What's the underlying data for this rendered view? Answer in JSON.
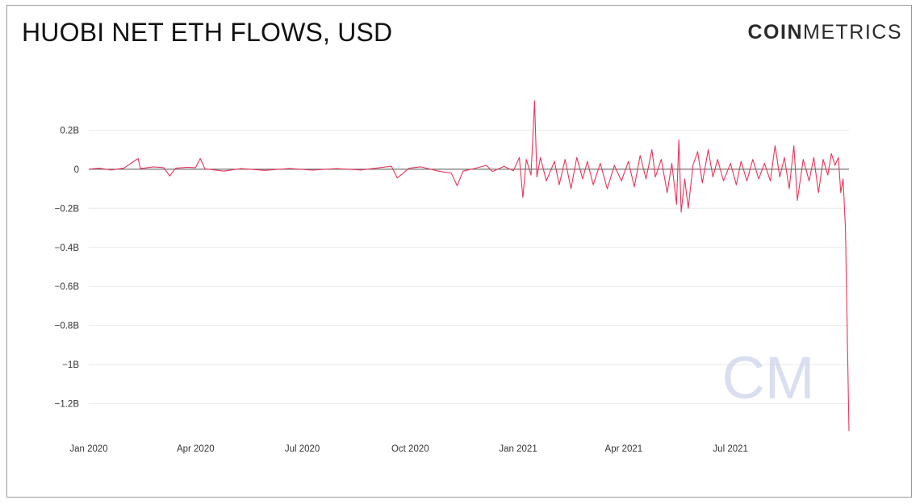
{
  "header": {
    "title": "HUOBI NET ETH FLOWS, USD",
    "logo_bold": "COIN",
    "logo_light": "METRICS",
    "watermark": "CM"
  },
  "colors": {
    "series": "#e8355a",
    "zero_line": "#555555",
    "grid": "#e9e9e9",
    "watermark": "#c9d2ea"
  },
  "chart_data": {
    "type": "line",
    "title": "HUOBI NET ETH FLOWS, USD",
    "xlabel": "",
    "ylabel": "",
    "grid": true,
    "legend": "none",
    "x_range": [
      "2020-01-01",
      "2021-10-10"
    ],
    "ylim": [
      -1.35,
      0.35
    ],
    "y_unit": "B USD",
    "y_ticks": [
      {
        "value": 0.2,
        "label": "0.2B"
      },
      {
        "value": 0,
        "label": "0"
      },
      {
        "value": -0.2,
        "label": "-0.2B"
      },
      {
        "value": -0.4,
        "label": "-0.4B"
      },
      {
        "value": -0.6,
        "label": "-0.6B"
      },
      {
        "value": -0.8,
        "label": "-0.8B"
      },
      {
        "value": -1.0,
        "label": "-1B"
      },
      {
        "value": -1.2,
        "label": "-1.2B"
      }
    ],
    "x_ticks": [
      {
        "date": "2020-01-01",
        "label": "Jan 2020"
      },
      {
        "date": "2020-04-01",
        "label": "Apr 2020"
      },
      {
        "date": "2020-07-01",
        "label": "Jul 2020"
      },
      {
        "date": "2020-10-01",
        "label": "Oct 2020"
      },
      {
        "date": "2021-01-01",
        "label": "Jan 2021"
      },
      {
        "date": "2021-04-01",
        "label": "Apr 2021"
      },
      {
        "date": "2021-07-01",
        "label": "Jul 2021"
      }
    ],
    "series": [
      {
        "points": [
          [
            "2020-01-01",
            0.0
          ],
          [
            "2020-01-10",
            0.005
          ],
          [
            "2020-01-20",
            -0.004
          ],
          [
            "2020-01-31",
            0.006
          ],
          [
            "2020-02-12",
            0.055
          ],
          [
            "2020-02-14",
            0.003
          ],
          [
            "2020-02-25",
            0.012
          ],
          [
            "2020-03-05",
            0.008
          ],
          [
            "2020-03-10",
            -0.035
          ],
          [
            "2020-03-15",
            0.005
          ],
          [
            "2020-03-25",
            0.01
          ],
          [
            "2020-04-01",
            0.008
          ],
          [
            "2020-04-05",
            0.055
          ],
          [
            "2020-04-09",
            0.002
          ],
          [
            "2020-04-25",
            -0.01
          ],
          [
            "2020-05-10",
            0.003
          ],
          [
            "2020-05-30",
            -0.006
          ],
          [
            "2020-06-20",
            0.004
          ],
          [
            "2020-07-10",
            -0.005
          ],
          [
            "2020-07-30",
            0.003
          ],
          [
            "2020-08-20",
            -0.004
          ],
          [
            "2020-09-05",
            0.008
          ],
          [
            "2020-09-15",
            0.015
          ],
          [
            "2020-09-20",
            -0.045
          ],
          [
            "2020-09-25",
            -0.02
          ],
          [
            "2020-09-30",
            0.005
          ],
          [
            "2020-10-10",
            0.012
          ],
          [
            "2020-10-25",
            -0.01
          ],
          [
            "2020-11-05",
            -0.02
          ],
          [
            "2020-11-10",
            -0.085
          ],
          [
            "2020-11-15",
            -0.01
          ],
          [
            "2020-11-25",
            0.004
          ],
          [
            "2020-12-05",
            0.02
          ],
          [
            "2020-12-10",
            -0.012
          ],
          [
            "2020-12-20",
            0.015
          ],
          [
            "2020-12-28",
            -0.008
          ],
          [
            "2021-01-02",
            0.06
          ],
          [
            "2021-01-05",
            -0.145
          ],
          [
            "2021-01-08",
            0.05
          ],
          [
            "2021-01-12",
            -0.03
          ],
          [
            "2021-01-15",
            0.35
          ],
          [
            "2021-01-17",
            -0.04
          ],
          [
            "2021-01-20",
            0.06
          ],
          [
            "2021-01-25",
            -0.06
          ],
          [
            "2021-02-01",
            0.04
          ],
          [
            "2021-02-05",
            -0.08
          ],
          [
            "2021-02-10",
            0.05
          ],
          [
            "2021-02-15",
            -0.1
          ],
          [
            "2021-02-20",
            0.06
          ],
          [
            "2021-02-25",
            -0.05
          ],
          [
            "2021-03-01",
            0.04
          ],
          [
            "2021-03-06",
            -0.08
          ],
          [
            "2021-03-12",
            0.03
          ],
          [
            "2021-03-18",
            -0.1
          ],
          [
            "2021-03-24",
            0.02
          ],
          [
            "2021-03-30",
            -0.06
          ],
          [
            "2021-04-05",
            0.04
          ],
          [
            "2021-04-10",
            -0.09
          ],
          [
            "2021-04-15",
            0.07
          ],
          [
            "2021-04-20",
            -0.05
          ],
          [
            "2021-04-25",
            0.1
          ],
          [
            "2021-04-28",
            -0.04
          ],
          [
            "2021-05-03",
            0.05
          ],
          [
            "2021-05-08",
            -0.12
          ],
          [
            "2021-05-12",
            0.03
          ],
          [
            "2021-05-16",
            -0.18
          ],
          [
            "2021-05-18",
            0.15
          ],
          [
            "2021-05-20",
            -0.22
          ],
          [
            "2021-05-23",
            -0.05
          ],
          [
            "2021-05-26",
            -0.2
          ],
          [
            "2021-05-30",
            0.02
          ],
          [
            "2021-06-03",
            0.09
          ],
          [
            "2021-06-07",
            -0.07
          ],
          [
            "2021-06-12",
            0.1
          ],
          [
            "2021-06-16",
            -0.04
          ],
          [
            "2021-06-20",
            0.05
          ],
          [
            "2021-06-25",
            -0.06
          ],
          [
            "2021-07-01",
            0.03
          ],
          [
            "2021-07-06",
            -0.08
          ],
          [
            "2021-07-10",
            0.04
          ],
          [
            "2021-07-15",
            -0.06
          ],
          [
            "2021-07-20",
            0.05
          ],
          [
            "2021-07-25",
            -0.05
          ],
          [
            "2021-07-30",
            0.03
          ],
          [
            "2021-08-04",
            -0.06
          ],
          [
            "2021-08-08",
            0.12
          ],
          [
            "2021-08-12",
            -0.04
          ],
          [
            "2021-08-16",
            0.06
          ],
          [
            "2021-08-20",
            -0.1
          ],
          [
            "2021-08-24",
            0.12
          ],
          [
            "2021-08-27",
            -0.16
          ],
          [
            "2021-09-01",
            0.05
          ],
          [
            "2021-09-06",
            -0.06
          ],
          [
            "2021-09-10",
            0.06
          ],
          [
            "2021-09-14",
            -0.12
          ],
          [
            "2021-09-18",
            0.05
          ],
          [
            "2021-09-22",
            -0.03
          ],
          [
            "2021-09-25",
            0.08
          ],
          [
            "2021-09-28",
            0.02
          ],
          [
            "2021-10-01",
            0.06
          ],
          [
            "2021-10-03",
            -0.12
          ],
          [
            "2021-10-05",
            -0.05
          ],
          [
            "2021-10-07",
            -0.3
          ],
          [
            "2021-10-10",
            -1.34
          ]
        ]
      }
    ]
  }
}
